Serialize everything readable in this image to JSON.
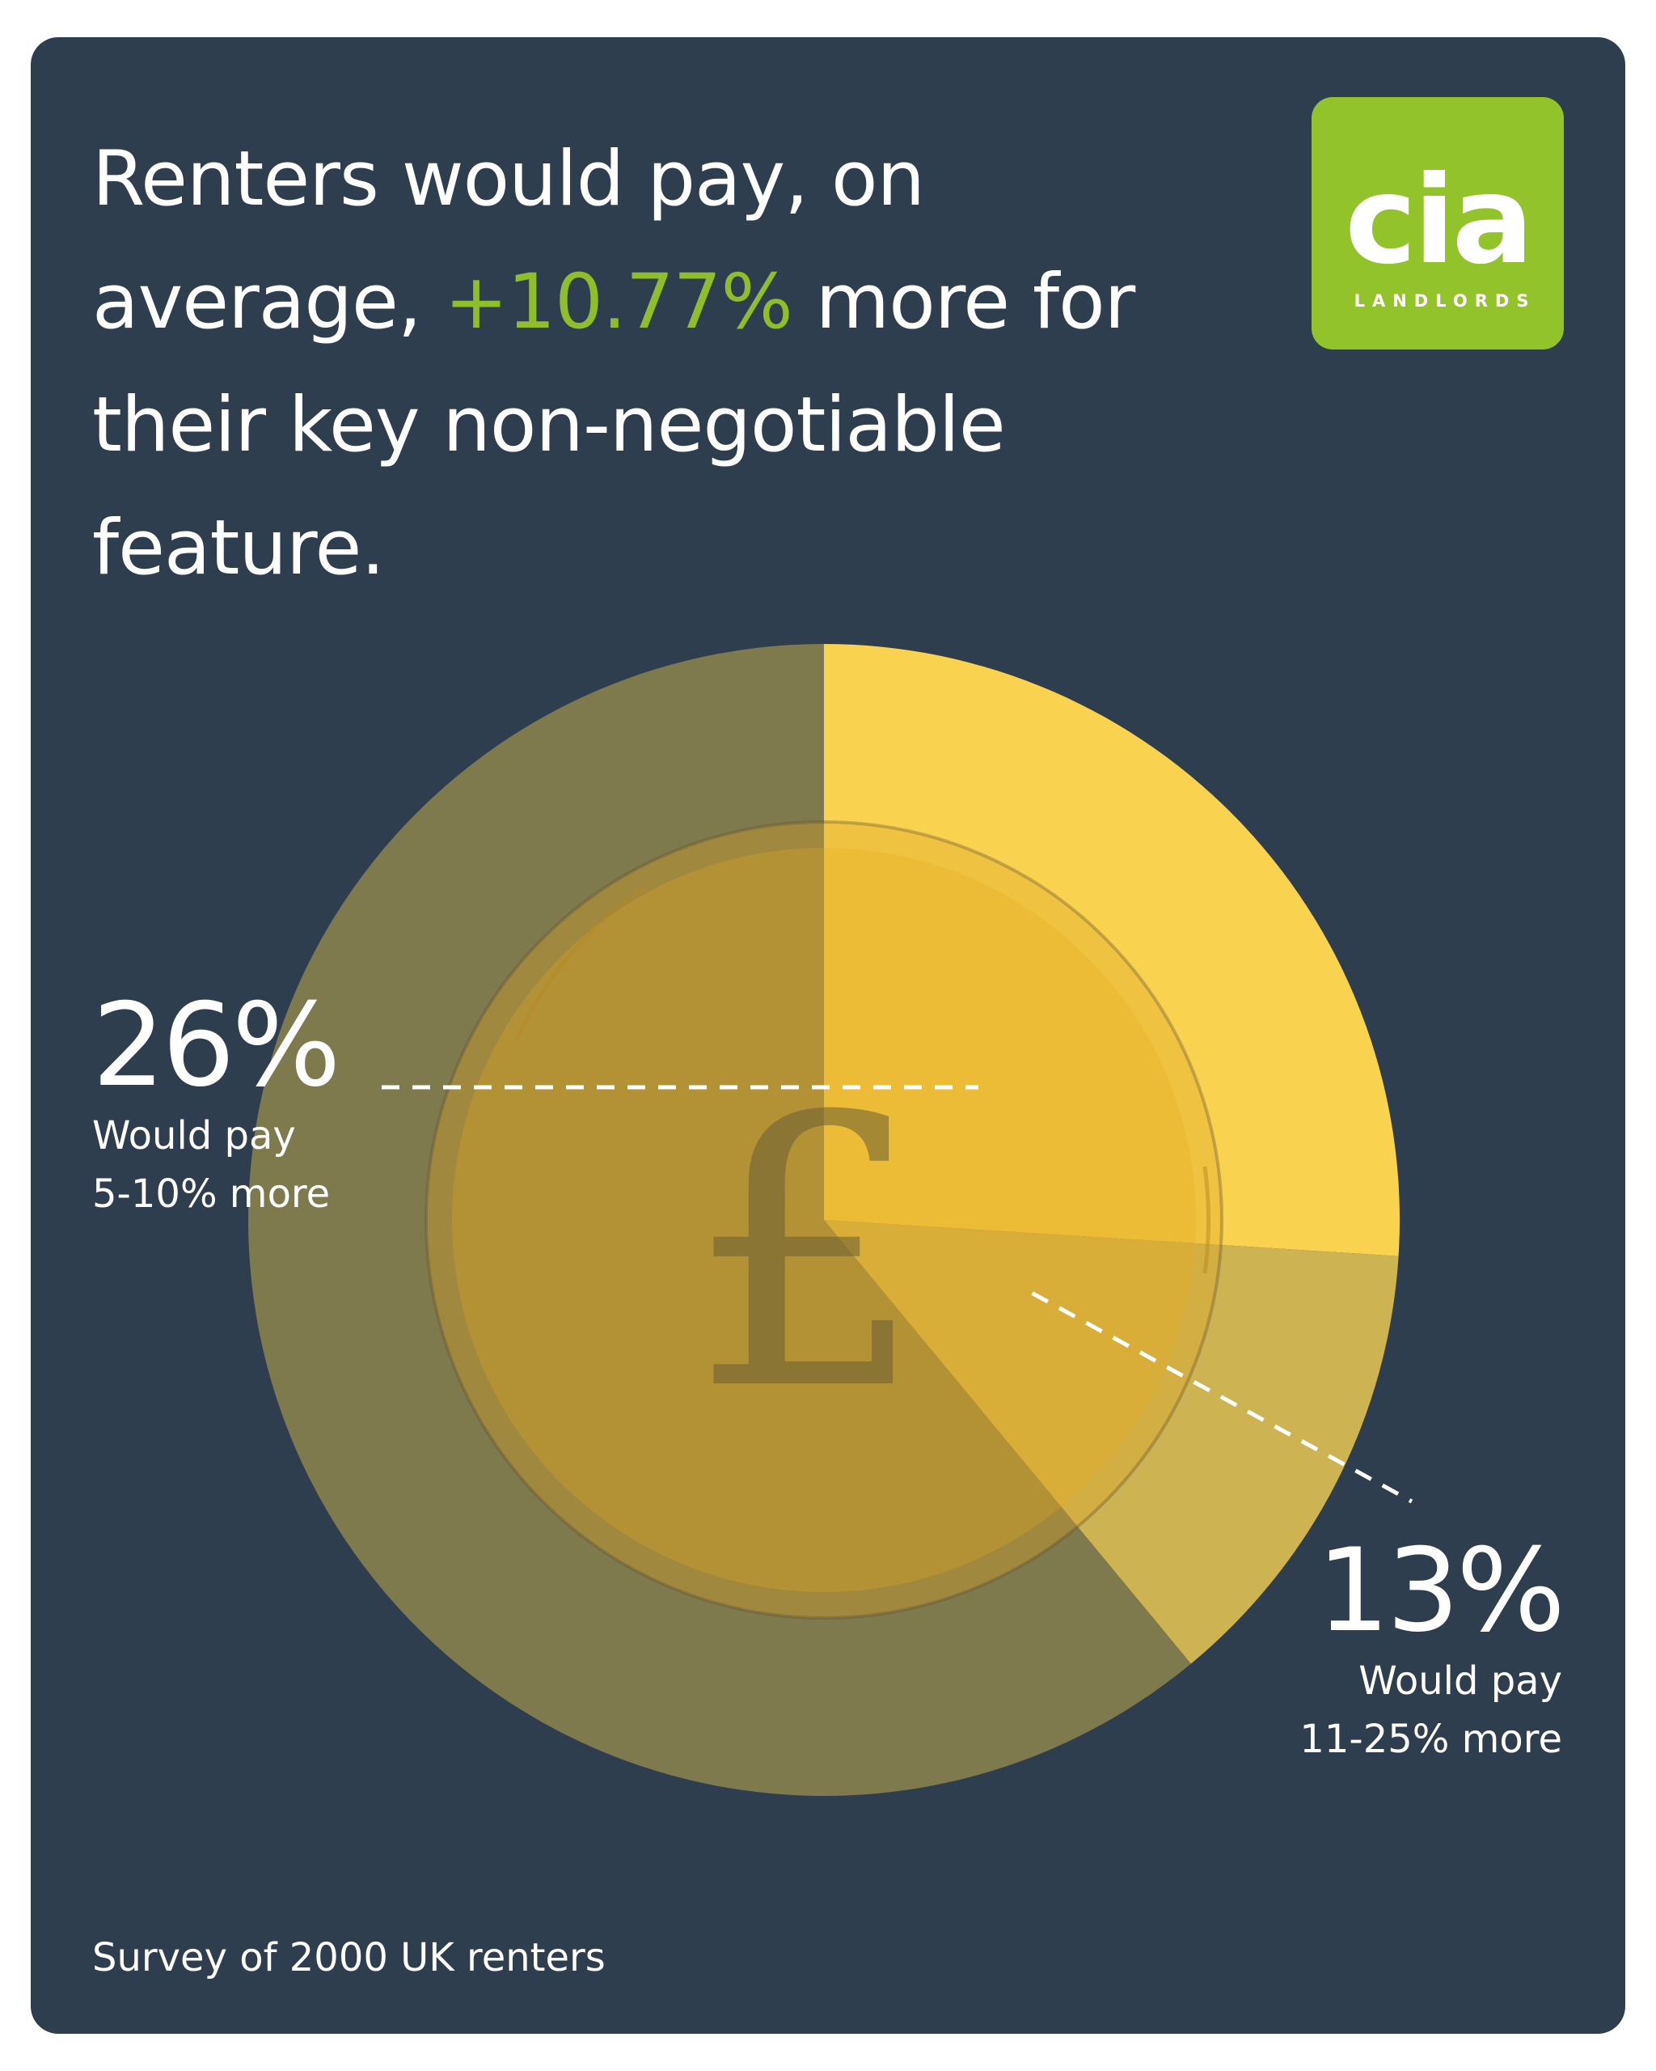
{
  "headline": {
    "before": "Renters would pay, on average, ",
    "highlight": "+10.77%",
    "after": " more for their key non-negotiable feature.",
    "highlight_color": "#8fbe2c"
  },
  "logo": {
    "word": "cia",
    "sub": "LANDLORDS",
    "bg_color": "#93c32a"
  },
  "chart_data": {
    "type": "pie",
    "start": "12 o'clock",
    "direction": "clockwise",
    "slices": [
      {
        "value": 26,
        "label": "26%",
        "description_lines": [
          "Would pay",
          "5-10% more"
        ],
        "color": "#f9d250"
      },
      {
        "value": 13,
        "label": "13%",
        "description_lines": [
          "Would pay",
          "11-25% more"
        ],
        "color": "#cdb352"
      },
      {
        "value": 61,
        "label": "",
        "description_lines": [],
        "color": "#7f794e"
      }
    ],
    "center_icon": "pound-sign-coin-icon"
  },
  "footnote": "Survey of 2000 UK renters",
  "colors": {
    "background": "#2e3e4e",
    "text": "#ffffff"
  }
}
